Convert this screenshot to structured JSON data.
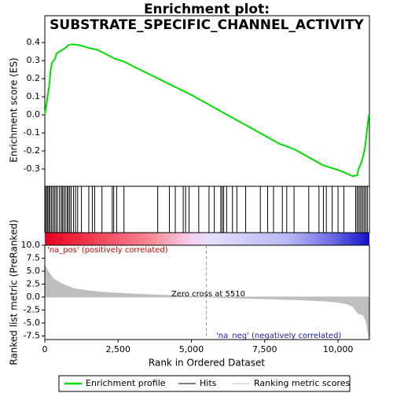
{
  "chart_data": [
    {
      "type": "line",
      "title": [
        "Enrichment plot:",
        "SUBSTRATE_SPECIFIC_CHANNEL_ACTIVITY"
      ],
      "ylabel": "Enrichment score (ES)",
      "xlim": [
        0,
        11070
      ],
      "ylim": [
        -0.374,
        0.44
      ],
      "yticks": [
        -0.3,
        -0.2,
        -0.1,
        {
          "value": 0,
          "label": "0.0"
        },
        0.1,
        0.2,
        0.3,
        0.4
      ],
      "series": [
        {
          "name": "Enrichment profile",
          "color": "#00dd00",
          "x": [
            0,
            50,
            100,
            150,
            200,
            250,
            350,
            400,
            500,
            600,
            700,
            800,
            900,
            1000,
            1200,
            1500,
            1800,
            2100,
            2400,
            2700,
            3000,
            3500,
            4000,
            4500,
            5000,
            5500,
            6000,
            6500,
            7000,
            7500,
            8000,
            8500,
            9000,
            9500,
            10000,
            10300,
            10500,
            10650,
            10700,
            10800,
            10900,
            10950,
            11000,
            11050
          ],
          "values": [
            0,
            0.05,
            0.11,
            0.16,
            0.25,
            0.29,
            0.31,
            0.34,
            0.35,
            0.36,
            0.37,
            0.385,
            0.39,
            0.39,
            0.385,
            0.37,
            0.36,
            0.335,
            0.31,
            0.295,
            0.27,
            0.23,
            0.19,
            0.15,
            0.11,
            0.065,
            0.02,
            -0.025,
            -0.07,
            -0.115,
            -0.16,
            -0.19,
            -0.235,
            -0.28,
            -0.305,
            -0.325,
            -0.34,
            -0.335,
            -0.3,
            -0.26,
            -0.2,
            -0.14,
            -0.07,
            0
          ]
        },
        {
          "name": "Hits",
          "color": "#000000",
          "x": [
            20,
            60,
            100,
            140,
            180,
            230,
            280,
            330,
            380,
            430,
            500,
            560,
            600,
            650,
            700,
            760,
            800,
            850,
            900,
            980,
            1050,
            1120,
            1250,
            1500,
            1620,
            1700,
            1950,
            2300,
            2350,
            2450,
            2700,
            3850,
            4250,
            4450,
            4720,
            4800,
            4920,
            5250,
            5600,
            5780,
            6000,
            6050,
            6100,
            6200,
            6400,
            6550,
            6850,
            7350,
            7600,
            7800,
            8100,
            8250,
            8500,
            9000,
            9350,
            9500,
            9600,
            9800,
            10000,
            10200,
            10600,
            10650,
            10700,
            10750,
            10800,
            10850,
            10900,
            10950,
            11000
          ]
        }
      ]
    },
    {
      "type": "area",
      "ylabel": "Ranked list metric (PreRanked)",
      "xlabel": "Rank in Ordered Dataset",
      "xlim": [
        0,
        11070
      ],
      "xticks": [
        0,
        {
          "value": 2500,
          "label": "2,500"
        },
        {
          "value": 5000,
          "label": "5,000"
        },
        {
          "value": 7500,
          "label": "7,500"
        },
        {
          "value": 10000,
          "label": "10,000"
        }
      ],
      "ylim": [
        -8.2,
        10
      ],
      "yticks": [
        {
          "value": -7.5,
          "label": "-7.5"
        },
        {
          "value": -5,
          "label": "-5.0"
        },
        -2.5,
        {
          "value": 0,
          "label": "0.0"
        },
        2.5,
        {
          "value": 5,
          "label": "5.0"
        },
        7.5,
        {
          "value": 10,
          "label": "10.0"
        }
      ],
      "zero_cross": 5510,
      "annotations": [
        "'na_pos' (positively correlated)",
        "Zero cross at 5510",
        "'na_neg' (negatively correlated)"
      ],
      "series": [
        {
          "name": "Ranking metric scores",
          "color": "#bebebe",
          "x": [
            0,
            100,
            300,
            600,
            1000,
            1500,
            2000,
            3000,
            4000,
            5000,
            5510,
            6000,
            7000,
            8000,
            9000,
            9500,
            10000,
            10300,
            10500,
            10600,
            10700,
            10850,
            10950,
            11000,
            11050
          ],
          "values": [
            6.2,
            5,
            3.5,
            2.5,
            1.6,
            1.2,
            0.9,
            0.6,
            0.35,
            0.15,
            0,
            -0.1,
            -0.25,
            -0.4,
            -0.6,
            -0.75,
            -1,
            -1.3,
            -1.8,
            -2.5,
            -3.2,
            -3.4,
            -4.5,
            -6,
            -7.8
          ]
        }
      ]
    }
  ]
}
